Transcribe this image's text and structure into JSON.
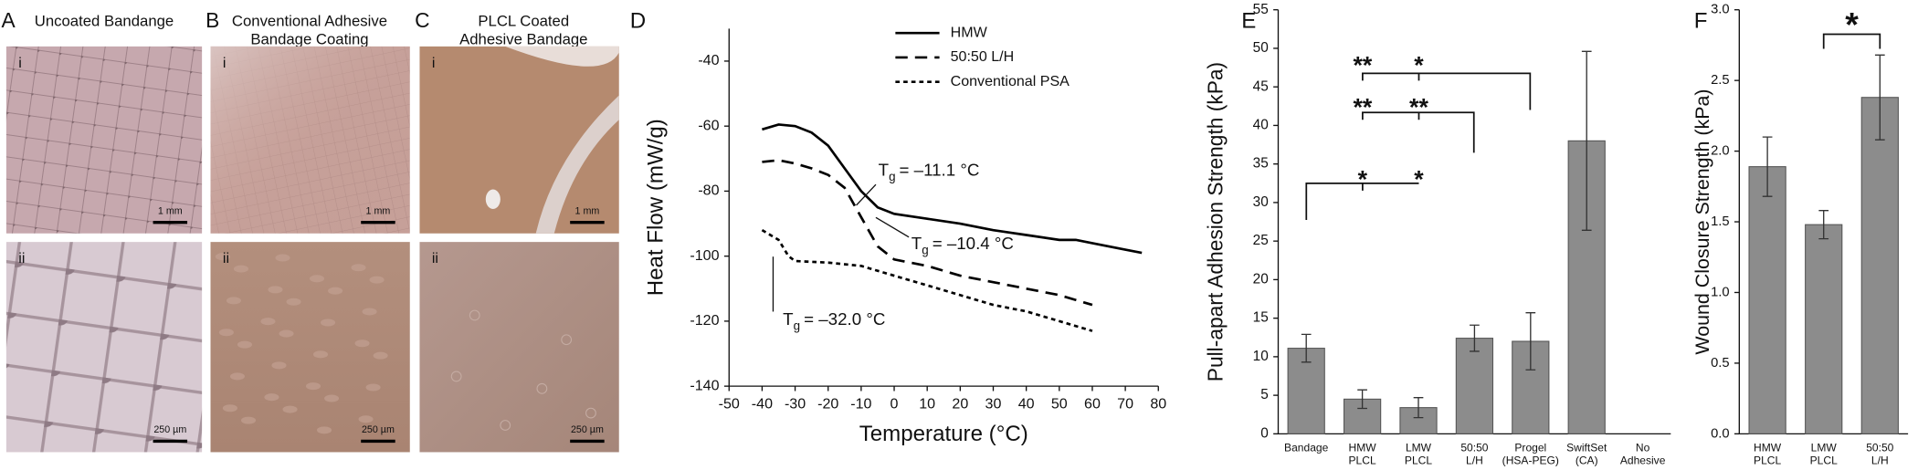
{
  "photo_panels": [
    {
      "letter": "A",
      "title": [
        "Uncoated Bandange"
      ],
      "rows": [
        {
          "label": "i",
          "scale": "1 mm"
        },
        {
          "label": "ii",
          "scale": "250 µm"
        }
      ]
    },
    {
      "letter": "B",
      "title": [
        "Conventional Adhesive",
        "Bandage Coating"
      ],
      "rows": [
        {
          "label": "i",
          "scale": "1 mm"
        },
        {
          "label": "ii",
          "scale": "250 µm"
        }
      ]
    },
    {
      "letter": "C",
      "title": [
        "PLCL Coated",
        "Adhesive Bandage"
      ],
      "rows": [
        {
          "label": "i",
          "scale": "1 mm"
        },
        {
          "label": "ii",
          "scale": "250 µm"
        }
      ]
    }
  ],
  "chart_data": [
    {
      "panel": "D",
      "type": "line",
      "xlabel": "Temperature (°C)",
      "ylabel": "Heat Flow (mW/g)",
      "xlim": [
        -50,
        80
      ],
      "ylim": [
        -140,
        -30
      ],
      "xticks": [
        -50,
        -40,
        -30,
        -20,
        -10,
        0,
        10,
        20,
        30,
        40,
        50,
        60,
        70,
        80
      ],
      "yticks": [
        -140,
        -120,
        -100,
        -80,
        -60,
        -40
      ],
      "legend": "upper right",
      "series": [
        {
          "name": "HMW",
          "color": "#000000",
          "dash": "solid",
          "x": [
            -40,
            -35,
            -30,
            -25,
            -20,
            -15,
            -10,
            -5,
            0,
            10,
            20,
            30,
            40,
            50,
            55,
            60,
            70,
            75
          ],
          "values": [
            -61,
            -59.5,
            -60,
            -62,
            -66,
            -73,
            -80,
            -85,
            -87,
            -88.5,
            -90,
            -92,
            -93.5,
            -95,
            -95,
            -96,
            -98,
            -99
          ]
        },
        {
          "name": "50:50 L/H",
          "color": "#000000",
          "dash": "dashed",
          "x": [
            -40,
            -35,
            -30,
            -25,
            -20,
            -15,
            -10,
            -5,
            0,
            10,
            20,
            30,
            40,
            50,
            60
          ],
          "values": [
            -71,
            -70.5,
            -71.5,
            -73,
            -75,
            -79,
            -88,
            -97,
            -101,
            -103,
            -106,
            -108,
            -110,
            -112,
            -115
          ]
        },
        {
          "name": "Conventional PSA",
          "color": "#000000",
          "dash": "dotted",
          "x": [
            -40,
            -35,
            -32,
            -30,
            -20,
            -10,
            0,
            10,
            20,
            30,
            40,
            50,
            60
          ],
          "values": [
            -92,
            -95,
            -100,
            -101.5,
            -102,
            -103,
            -106,
            -109,
            -112,
            -115,
            -117,
            -120,
            -123
          ]
        }
      ],
      "annotations": [
        {
          "symbol": "T",
          "subscript": "g",
          "text": "= –11.1 °C"
        },
        {
          "symbol": "T",
          "subscript": "g",
          "text": "= –10.4 °C"
        },
        {
          "symbol": "T",
          "subscript": "g",
          "text": "= –32.0 °C"
        }
      ]
    },
    {
      "panel": "E",
      "type": "bar",
      "ylabel": "Pull-apart Adhesion Strength (kPa)",
      "categories": [
        "Bandage",
        "HMW\nPLCL",
        "LMW\nPLCL",
        "50:50\nL/H",
        "Progel\n(HSA-PEG)",
        "SwiftSet\n(CA)",
        "No\nAdhesive"
      ],
      "values": [
        11.1,
        4.5,
        3.4,
        12.4,
        12.0,
        38.0,
        null
      ],
      "errors": [
        1.8,
        1.2,
        1.3,
        1.7,
        3.7,
        11.6,
        null
      ],
      "color": "#8c8c8c",
      "ylim": [
        0,
        55
      ],
      "yticks": [
        0,
        5,
        10,
        15,
        20,
        25,
        30,
        35,
        40,
        45,
        50,
        55
      ],
      "annotations": [
        "**",
        "*",
        "**",
        "**",
        "*",
        "*"
      ]
    },
    {
      "panel": "F",
      "type": "bar",
      "ylabel": "Wound Closure Strength (kPa)",
      "categories": [
        "HMW\nPLCL",
        "LMW\nPLCL",
        "50:50\nL/H"
      ],
      "values": [
        1.89,
        1.48,
        2.38
      ],
      "errors": [
        0.21,
        0.1,
        0.3
      ],
      "color": "#8c8c8c",
      "ylim": [
        0,
        3
      ],
      "yticks": [
        {
          "value": 0,
          "label": "0.0"
        },
        0.5,
        {
          "value": 1,
          "label": "1.0"
        },
        1.5,
        {
          "value": 2,
          "label": "2.0"
        },
        2.5,
        {
          "value": 3,
          "label": "3.0"
        }
      ],
      "annotations": [
        "*"
      ]
    }
  ]
}
